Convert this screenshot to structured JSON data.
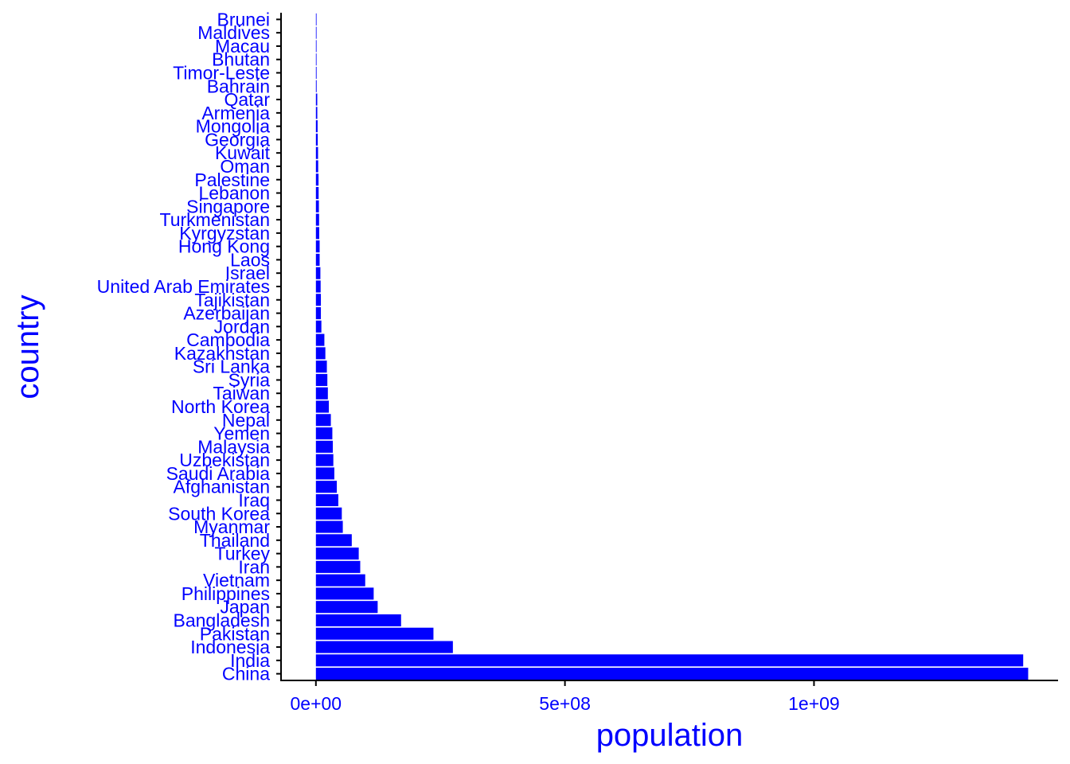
{
  "chart_data": {
    "type": "bar",
    "orientation": "horizontal",
    "xlabel": "population",
    "ylabel": "country",
    "xlim": [
      -70000000,
      1490000000
    ],
    "x_ticks": [
      {
        "value": 0,
        "label": "0e+00"
      },
      {
        "value": 500000000,
        "label": "5e+08"
      },
      {
        "value": 1000000000,
        "label": "1e+09"
      }
    ],
    "bar_color": "#0000ff",
    "label_color": "#0000ff",
    "grid": false,
    "categories": [
      "China",
      "India",
      "Indonesia",
      "Pakistan",
      "Bangladesh",
      "Japan",
      "Philippines",
      "Vietnam",
      "Iran",
      "Turkey",
      "Thailand",
      "Myanmar",
      "South Korea",
      "Iraq",
      "Afghanistan",
      "Saudi Arabia",
      "Uzbekistan",
      "Malaysia",
      "Yemen",
      "Nepal",
      "North Korea",
      "Taiwan",
      "Syria",
      "Sri Lanka",
      "Kazakhstan",
      "Cambodia",
      "Jordan",
      "Azerbaijan",
      "Tajikistan",
      "United Arab Emirates",
      "Israel",
      "Laos",
      "Hong Kong",
      "Kyrgyzstan",
      "Turkmenistan",
      "Singapore",
      "Lebanon",
      "Palestine",
      "Oman",
      "Kuwait",
      "Georgia",
      "Mongolia",
      "Armenia",
      "Qatar",
      "Bahrain",
      "Timor-Leste",
      "Bhutan",
      "Macau",
      "Maldives",
      "Brunei"
    ],
    "values": [
      1430000000,
      1420000000,
      275000000,
      236000000,
      171000000,
      124000000,
      116000000,
      99000000,
      89000000,
      86000000,
      72000000,
      54000000,
      52000000,
      45000000,
      42000000,
      37000000,
      35000000,
      34000000,
      33000000,
      30000000,
      26000000,
      24000000,
      23000000,
      22000000,
      19000000,
      17000000,
      11000000,
      10000000,
      10000000,
      9500000,
      9000000,
      7500000,
      7500000,
      6700000,
      6400000,
      6000000,
      5500000,
      5300000,
      4600000,
      4300000,
      3700000,
      3400000,
      2800000,
      2700000,
      1500000,
      1400000,
      780000,
      700000,
      520000,
      450000
    ]
  }
}
